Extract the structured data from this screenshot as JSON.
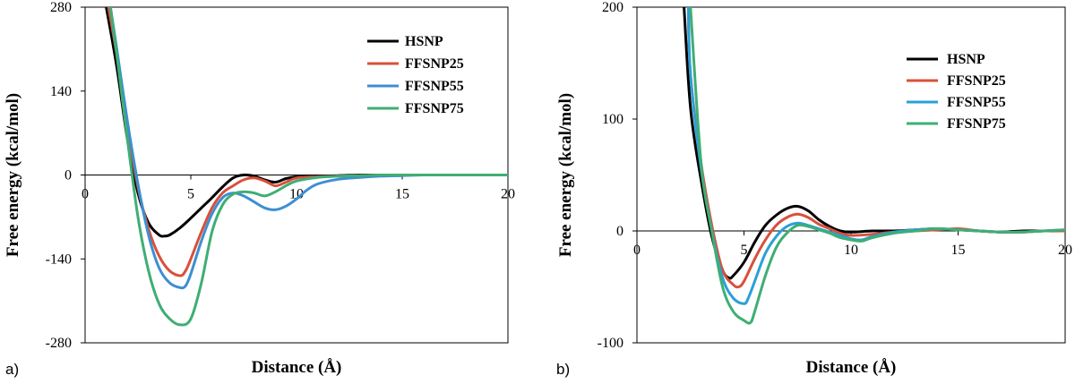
{
  "chart_data": [
    {
      "type": "line",
      "panel_label": "a)",
      "xlabel": "Distance (Å)",
      "ylabel": "Free energy (kcal/mol)",
      "xlim": [
        0,
        20
      ],
      "ylim": [
        -280,
        280
      ],
      "xticks": [
        0,
        5,
        10,
        15,
        20
      ],
      "yticks": [
        280,
        140,
        0,
        -140,
        -280
      ],
      "grid": false,
      "legend_position": "top-right",
      "series": [
        {
          "name": "HSNP",
          "color": "#000000",
          "x": [
            1.0,
            1.5,
            2.0,
            2.5,
            3.0,
            3.5,
            3.75,
            4.0,
            4.5,
            5.0,
            5.5,
            6.0,
            6.5,
            7.0,
            7.5,
            8.0,
            8.5,
            9.0,
            9.5,
            10.0,
            11.0,
            12.0,
            13.0,
            14.0,
            15.0,
            16.0,
            17.0,
            18.0,
            19.0,
            20.0
          ],
          "y": [
            280,
            180,
            60,
            -30,
            -80,
            -100,
            -102,
            -100,
            -88,
            -72,
            -55,
            -38,
            -20,
            -5,
            0,
            -2,
            -8,
            -12,
            -6,
            -3,
            -2,
            -1,
            0,
            0,
            0,
            0,
            0,
            0,
            0,
            0
          ]
        },
        {
          "name": "FFSNP25",
          "color": "#d9503a",
          "x": [
            1.1,
            1.5,
            2.0,
            2.5,
            3.0,
            3.5,
            4.0,
            4.5,
            4.75,
            5.0,
            5.5,
            6.0,
            6.5,
            7.0,
            7.5,
            8.0,
            8.5,
            9.0,
            9.5,
            10.0,
            11.0,
            12.0,
            13.0,
            14.0,
            15.0,
            16.0,
            17.0,
            18.0,
            19.0,
            20.0
          ],
          "y": [
            280,
            200,
            80,
            -20,
            -90,
            -135,
            -160,
            -168,
            -160,
            -140,
            -95,
            -55,
            -30,
            -18,
            -8,
            -5,
            -10,
            -18,
            -12,
            -5,
            -3,
            -2,
            -1,
            0,
            0,
            0,
            0,
            0,
            0,
            0
          ]
        },
        {
          "name": "FFSNP55",
          "color": "#3c8fd2",
          "x": [
            1.2,
            1.5,
            2.0,
            2.5,
            3.0,
            3.5,
            4.0,
            4.5,
            4.75,
            5.0,
            5.5,
            6.0,
            6.5,
            7.0,
            7.5,
            8.0,
            8.5,
            9.0,
            9.5,
            10.0,
            10.5,
            11.0,
            12.0,
            13.0,
            14.0,
            15.0,
            16.0,
            17.0,
            18.0,
            19.0,
            20.0
          ],
          "y": [
            280,
            210,
            90,
            -15,
            -100,
            -155,
            -180,
            -188,
            -185,
            -165,
            -110,
            -65,
            -38,
            -30,
            -35,
            -45,
            -55,
            -58,
            -52,
            -40,
            -25,
            -15,
            -7,
            -4,
            -2,
            -1,
            0,
            0,
            0,
            0,
            0
          ]
        },
        {
          "name": "FFSNP75",
          "color": "#3fae74",
          "x": [
            1.2,
            1.5,
            2.0,
            2.5,
            3.0,
            3.5,
            4.0,
            4.5,
            5.0,
            5.5,
            6.0,
            6.5,
            7.0,
            7.5,
            8.0,
            8.5,
            9.0,
            9.5,
            10.0,
            11.0,
            12.0,
            13.0,
            14.0,
            15.0,
            16.0,
            17.0,
            18.0,
            19.0,
            20.0
          ],
          "y": [
            280,
            200,
            60,
            -70,
            -160,
            -215,
            -240,
            -250,
            -240,
            -180,
            -95,
            -50,
            -32,
            -28,
            -30,
            -35,
            -28,
            -18,
            -10,
            -4,
            -2,
            -1,
            0,
            0,
            0,
            0,
            0,
            0,
            0
          ]
        }
      ]
    },
    {
      "type": "line",
      "panel_label": "b)",
      "xlabel": "Distance (Å)",
      "ylabel": "Free energy (kcal/mol)",
      "xlim": [
        0,
        20
      ],
      "ylim": [
        -100,
        200
      ],
      "xticks": [
        0,
        5,
        10,
        15,
        20
      ],
      "yticks": [
        200,
        100,
        0,
        -100
      ],
      "grid": false,
      "legend_position": "top-right",
      "series": [
        {
          "name": "HSNP",
          "color": "#000000",
          "x": [
            2.2,
            2.5,
            3.0,
            3.5,
            4.0,
            4.3,
            4.5,
            5.0,
            5.5,
            6.0,
            6.5,
            7.0,
            7.5,
            8.0,
            8.5,
            9.0,
            9.5,
            10.0,
            11.0,
            12.0,
            13.0,
            14.0,
            15.0,
            16.0,
            17.0,
            18.0,
            19.0,
            20.0
          ],
          "y": [
            200,
            110,
            45,
            -5,
            -35,
            -42,
            -40,
            -28,
            -10,
            5,
            14,
            20,
            22,
            18,
            10,
            4,
            0,
            -1,
            0,
            0,
            1,
            2,
            1,
            0,
            -1,
            0,
            0,
            0
          ]
        },
        {
          "name": "FFSNP25",
          "color": "#d9503a",
          "x": [
            2.4,
            2.5,
            3.0,
            3.5,
            4.0,
            4.5,
            4.75,
            5.0,
            5.5,
            6.0,
            6.5,
            7.0,
            7.5,
            8.0,
            8.5,
            9.0,
            9.5,
            10.0,
            11.0,
            12.0,
            13.0,
            14.0,
            15.0,
            16.0,
            17.0,
            18.0,
            19.0,
            20.0
          ],
          "y": [
            200,
            140,
            60,
            5,
            -35,
            -48,
            -50,
            -45,
            -25,
            -8,
            5,
            12,
            15,
            12,
            6,
            2,
            -2,
            -4,
            -3,
            -1,
            0,
            1,
            2,
            0,
            -1,
            -1,
            0,
            0
          ]
        },
        {
          "name": "FFSNP55",
          "color": "#2aa0d8",
          "x": [
            2.4,
            2.5,
            3.0,
            3.5,
            4.0,
            4.5,
            5.0,
            5.2,
            5.5,
            6.0,
            6.5,
            7.0,
            7.5,
            8.0,
            8.5,
            9.0,
            9.5,
            10.0,
            10.5,
            11.0,
            12.0,
            13.0,
            14.0,
            15.0,
            16.0,
            17.0,
            18.0,
            19.0,
            20.0
          ],
          "y": [
            200,
            140,
            55,
            0,
            -42,
            -60,
            -65,
            -60,
            -45,
            -20,
            -5,
            4,
            7,
            5,
            2,
            -1,
            -4,
            -7,
            -8,
            -5,
            -1,
            1,
            2,
            1,
            0,
            -1,
            -1,
            0,
            1
          ]
        },
        {
          "name": "FFSNP75",
          "color": "#3fae74",
          "x": [
            2.5,
            3.0,
            3.5,
            4.0,
            4.5,
            5.0,
            5.3,
            5.5,
            6.0,
            6.5,
            7.0,
            7.5,
            8.0,
            8.5,
            9.0,
            9.5,
            10.0,
            10.5,
            11.0,
            12.0,
            13.0,
            14.0,
            15.0,
            16.0,
            17.0,
            18.0,
            19.0,
            20.0
          ],
          "y": [
            200,
            60,
            0,
            -50,
            -72,
            -80,
            -82,
            -72,
            -40,
            -15,
            -2,
            5,
            4,
            1,
            -2,
            -6,
            -8,
            -9,
            -6,
            -2,
            0,
            2,
            1,
            0,
            -1,
            -1,
            0,
            1
          ]
        }
      ]
    }
  ]
}
